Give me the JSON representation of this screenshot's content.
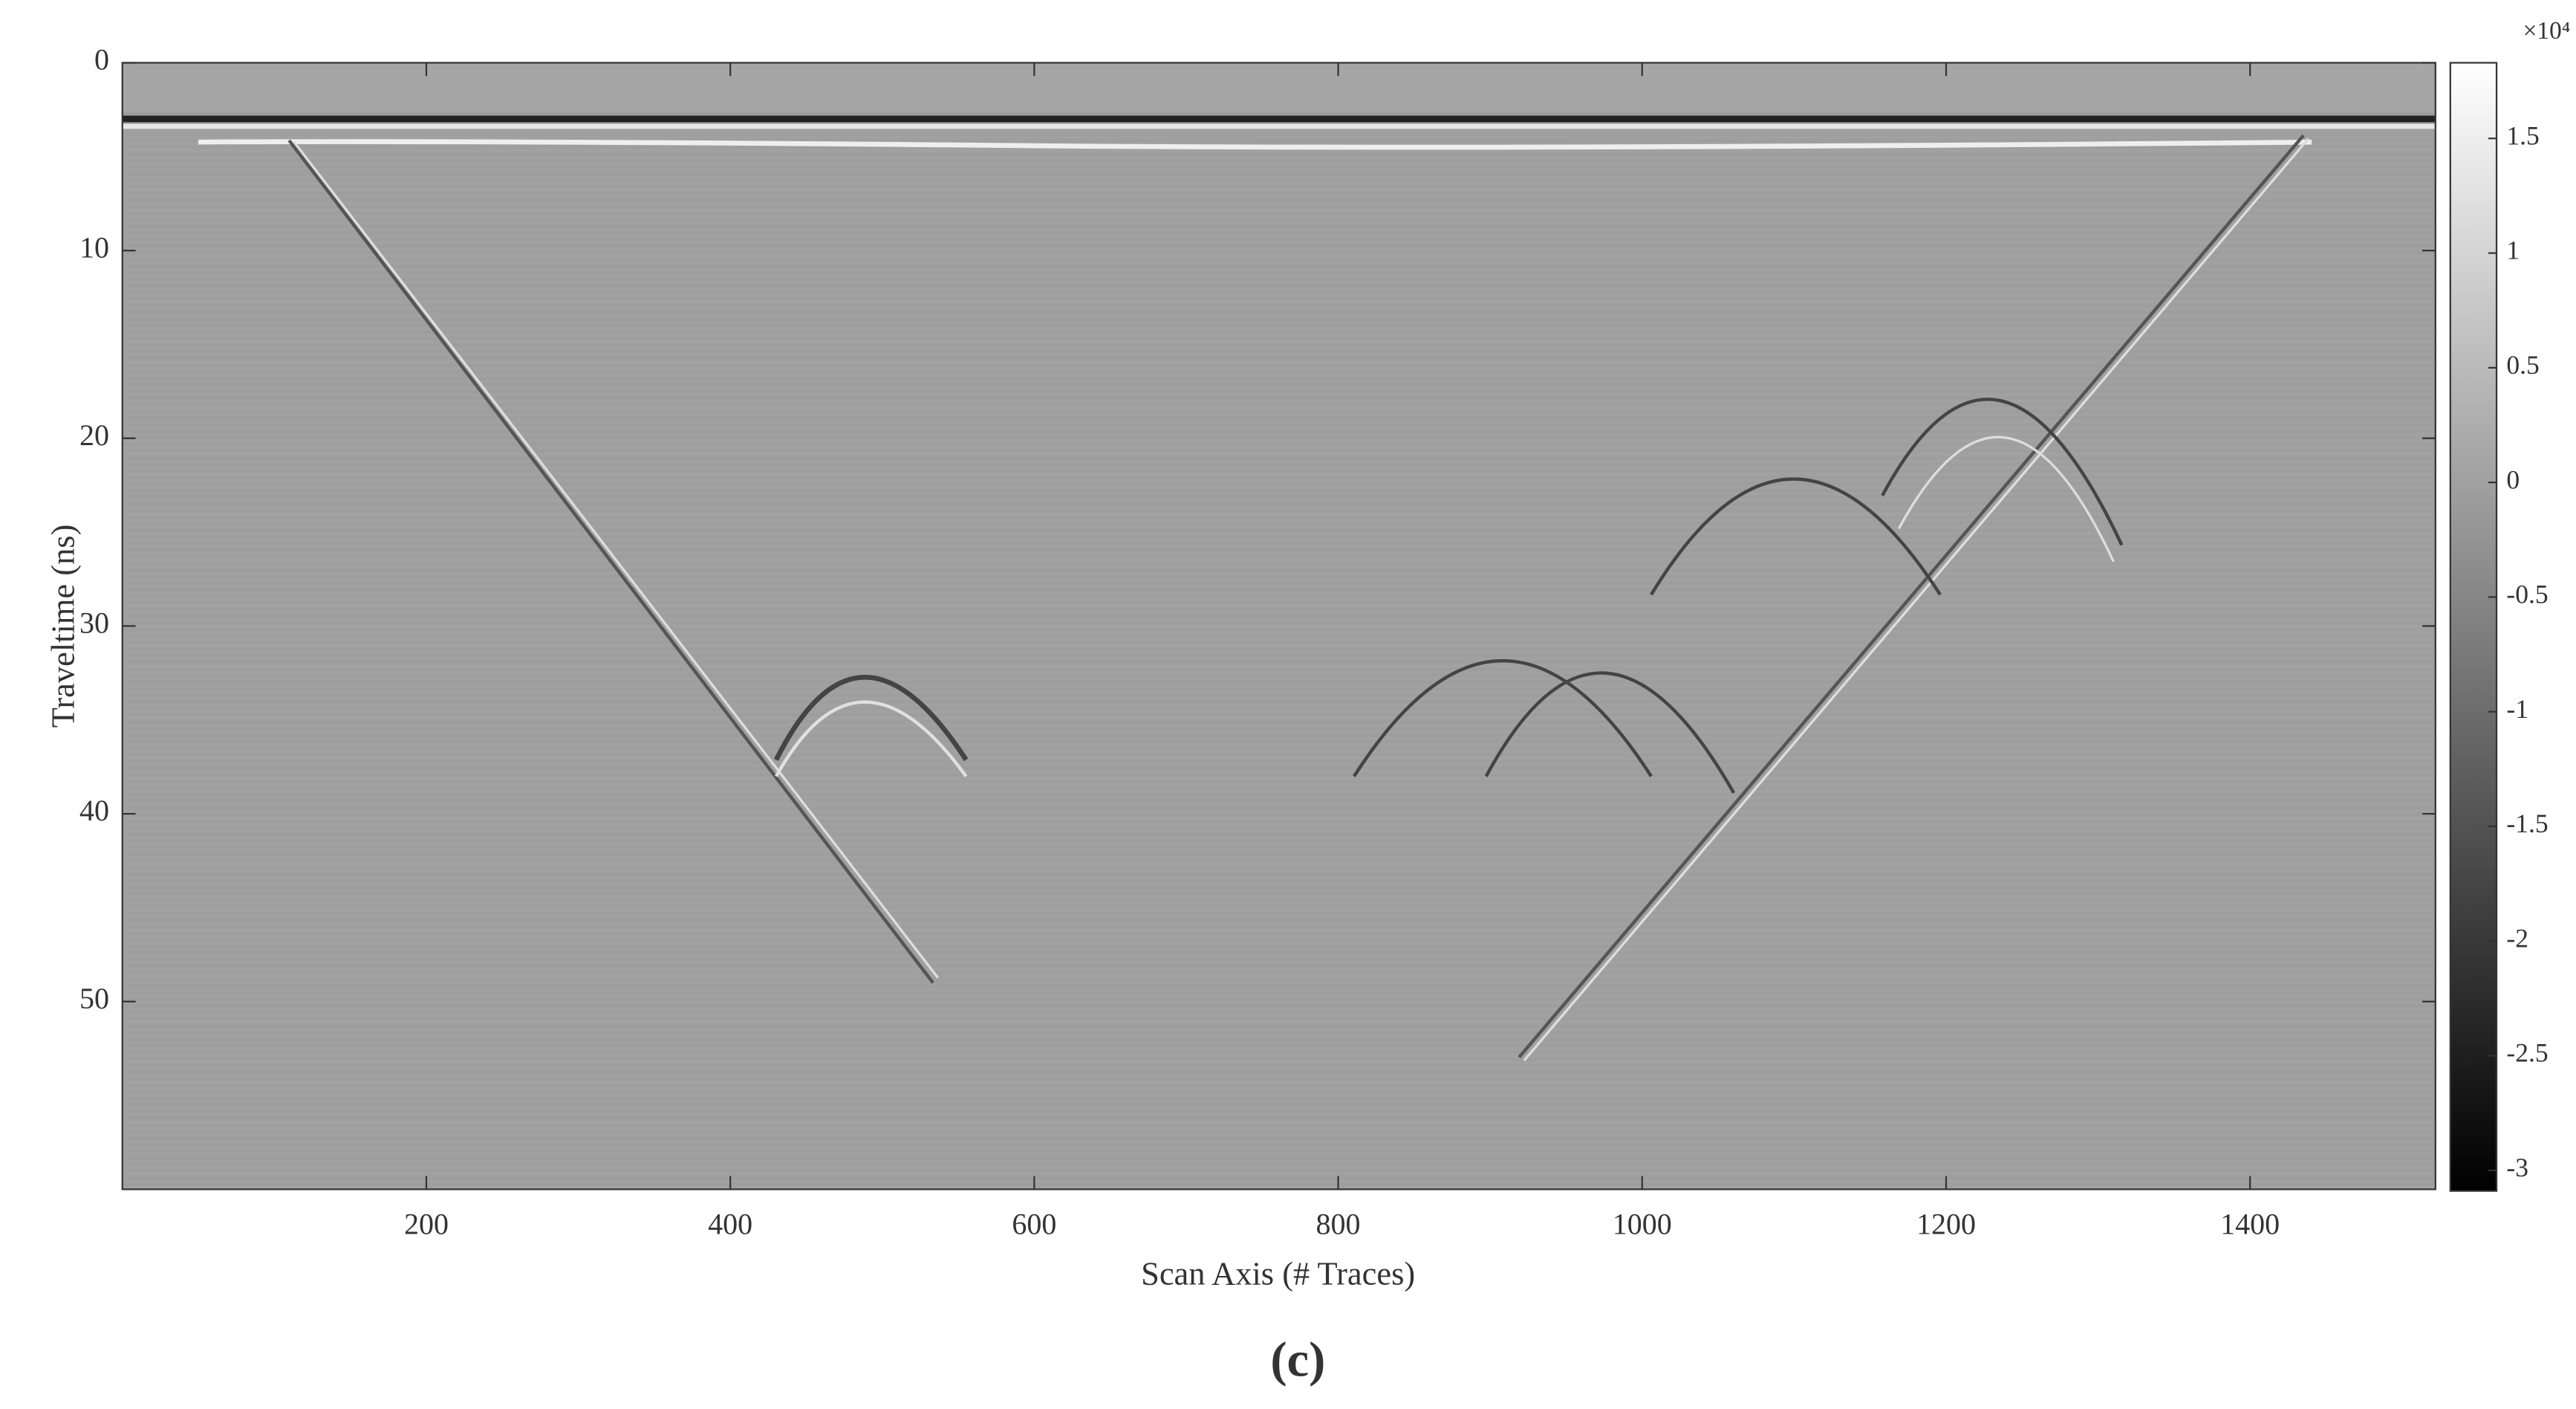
{
  "chart_data": {
    "type": "image",
    "xlabel": "Scan Axis (# Traces)",
    "ylabel": "Traveltime (ns)",
    "caption": "(c)",
    "xlim": [
      0,
      1522
    ],
    "xticks": [
      200,
      400,
      600,
      800,
      1000,
      1200,
      1400
    ],
    "ylim": [
      60,
      0
    ],
    "yticks": [
      0,
      10,
      20,
      30,
      40,
      50
    ],
    "colormap": "gray",
    "clim": [
      -3.09,
      1.83
    ],
    "cticks": [
      1.5,
      1,
      0.5,
      0,
      -0.5,
      -1,
      -1.5,
      -2,
      -2.5,
      -3
    ],
    "colorbar_multiplier": "×10⁴"
  }
}
